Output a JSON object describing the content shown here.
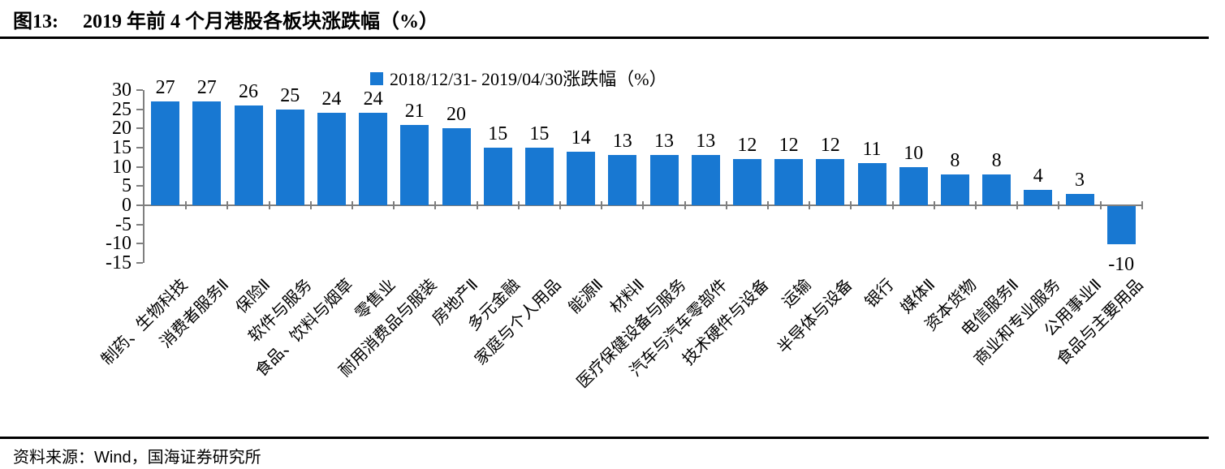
{
  "header": {
    "figure_label": "图13:",
    "title": "2019 年前 4 个月港股各板块涨跌幅（%）"
  },
  "footer": {
    "source_prefix": "资料来源：",
    "source_vendor": "Wind",
    "source_suffix": "，国海证券研究所"
  },
  "chart_data": {
    "type": "bar",
    "title": "2019 年前 4 个月港股各板块涨跌幅（%）",
    "legend": "2018/12/31- 2019/04/30涨跌幅（%）",
    "legend_position": "top",
    "categories": [
      "制药、生物科技",
      "消费者服务Ⅱ",
      "保险Ⅱ",
      "软件与服务",
      "食品、饮料与烟草",
      "零售业",
      "耐用消费品与服装",
      "房地产Ⅱ",
      "多元金融",
      "家庭与个人用品",
      "能源Ⅱ",
      "材料Ⅱ",
      "医疗保健设备与服务",
      "汽车与汽车零部件",
      "技术硬件与设备",
      "运输",
      "半导体与设备",
      "银行",
      "媒体Ⅱ",
      "资本货物",
      "电信服务Ⅱ",
      "商业和专业服务",
      "公用事业Ⅱ",
      "食品与主要用品"
    ],
    "values": [
      27,
      27,
      26,
      25,
      24,
      24,
      21,
      20,
      15,
      15,
      14,
      13,
      13,
      13,
      12,
      12,
      12,
      11,
      10,
      8,
      8,
      4,
      3,
      -10
    ],
    "ylim": [
      -15,
      30
    ],
    "yticks": [
      30,
      25,
      20,
      15,
      10,
      5,
      0,
      -5,
      -10,
      -15
    ],
    "grid": false,
    "bar_color": "#1878D2",
    "axis_color": "#7F7F7F",
    "text_color": "#000000"
  }
}
